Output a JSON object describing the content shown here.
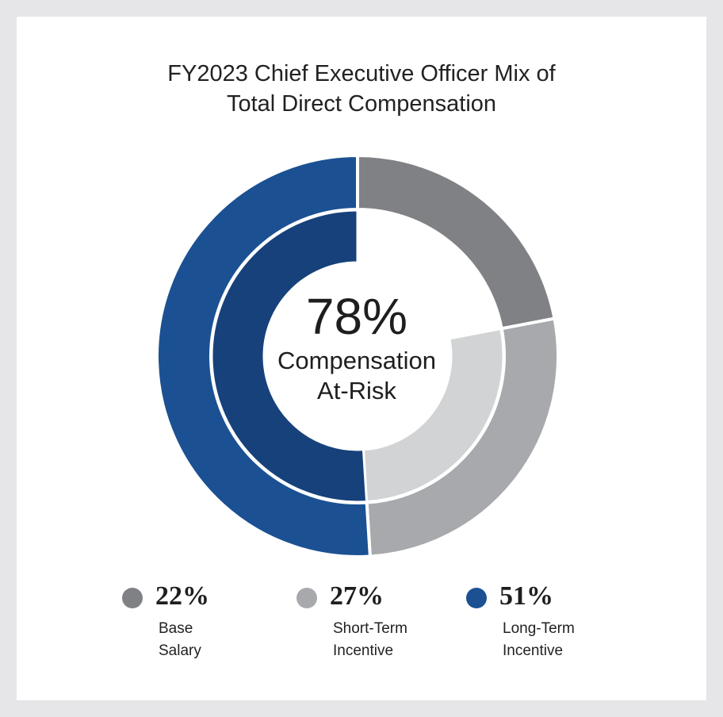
{
  "chart_data": {
    "type": "pie",
    "title": "FY2023 Chief Executive Officer Mix of Total Direct Compensation",
    "title_lines": [
      "FY2023 Chief Executive Officer Mix of",
      "Total Direct Compensation"
    ],
    "center": {
      "value": "78%",
      "label_lines": [
        "Compensation",
        "At-Risk"
      ]
    },
    "slices": [
      {
        "name": "Base Salary",
        "value": 22,
        "value_label": "22%",
        "label_lines": [
          "Base",
          "Salary"
        ],
        "color": "#808184",
        "inner_color": null
      },
      {
        "name": "Short-Term Incentive",
        "value": 27,
        "value_label": "27%",
        "label_lines": [
          "Short-Term",
          "Incentive"
        ],
        "color": "#a7a9ac",
        "inner_color": "#d1d3d4"
      },
      {
        "name": "Long-Term Incentive",
        "value": 51,
        "value_label": "51%",
        "label_lines": [
          "Long-Term",
          "Incentive"
        ],
        "color": "#1b5193",
        "inner_color": "#16417b"
      }
    ],
    "legend_position": "bottom"
  }
}
